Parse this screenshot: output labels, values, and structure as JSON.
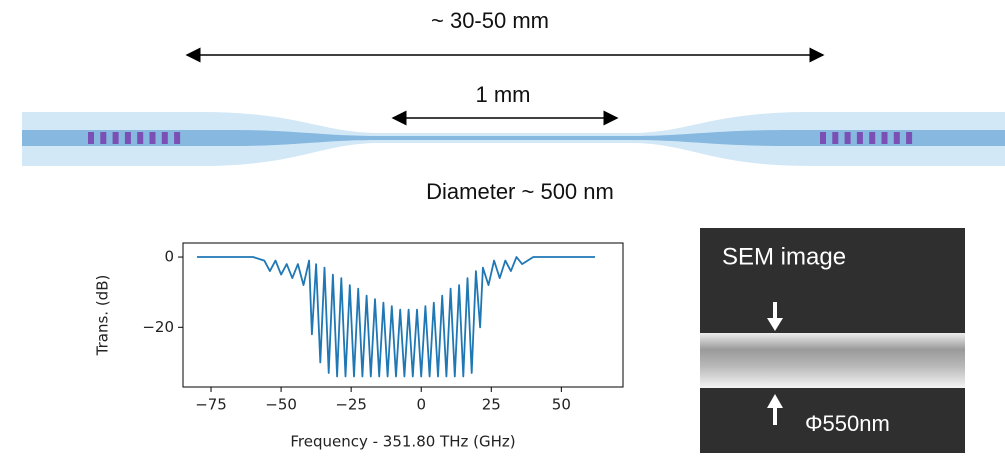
{
  "diagram": {
    "overall_length": "~ 30-50 mm",
    "taper_length": "1 mm",
    "diameter": "Diameter ~ 500 nm"
  },
  "sem": {
    "title": "SEM image",
    "diameter": "Φ550nm"
  },
  "chart_data": {
    "type": "line",
    "xlabel": "Frequency - 351.80 THz (GHz)",
    "ylabel": "Trans. (dB)",
    "xlim": [
      -85,
      72
    ],
    "ylim": [
      -37,
      4
    ],
    "xticks": [
      {
        "value": -75,
        "label": "−75"
      },
      {
        "value": -50,
        "label": "−50"
      },
      {
        "value": -25,
        "label": "−25"
      },
      0,
      25,
      50
    ],
    "yticks": [
      0,
      {
        "value": -20,
        "label": "−20"
      }
    ],
    "x": [
      -80,
      -70,
      -60,
      -56,
      -54,
      -52,
      -50,
      -48,
      -46,
      -44,
      -42,
      -40,
      -39,
      -37.5,
      -36,
      -34.5,
      -33,
      -31.5,
      -30,
      -28.5,
      -27,
      -25.5,
      -24,
      -22.5,
      -21,
      -19.5,
      -18,
      -16.5,
      -15,
      -13.5,
      -12,
      -10.5,
      -9,
      -7.5,
      -6,
      -4.5,
      -3,
      -1.5,
      0,
      1.5,
      3,
      4.5,
      6,
      7.5,
      9,
      10.5,
      12,
      13.5,
      15,
      16.5,
      18,
      19.5,
      21,
      22,
      24,
      26,
      28,
      30,
      32,
      34,
      36,
      40,
      50,
      62
    ],
    "series": [
      {
        "color": "#1f77b4",
        "values": [
          0,
          0,
          0,
          -1,
          -4,
          -1,
          -5,
          -2,
          -6,
          -2,
          -8,
          -1,
          -22,
          -2,
          -30,
          -3,
          -33,
          -5,
          -34,
          -6,
          -34,
          -8,
          -34,
          -9,
          -34,
          -11,
          -34,
          -12,
          -34,
          -13,
          -34,
          -14,
          -34,
          -15,
          -34,
          -15,
          -34,
          -15,
          -34,
          -14,
          -34,
          -13,
          -34,
          -11,
          -34,
          -9,
          -34,
          -8,
          -34,
          -6,
          -33,
          -4,
          -20,
          -3,
          -8,
          -1,
          -6,
          -1,
          -4,
          0,
          -2,
          0,
          0,
          0
        ]
      }
    ]
  }
}
